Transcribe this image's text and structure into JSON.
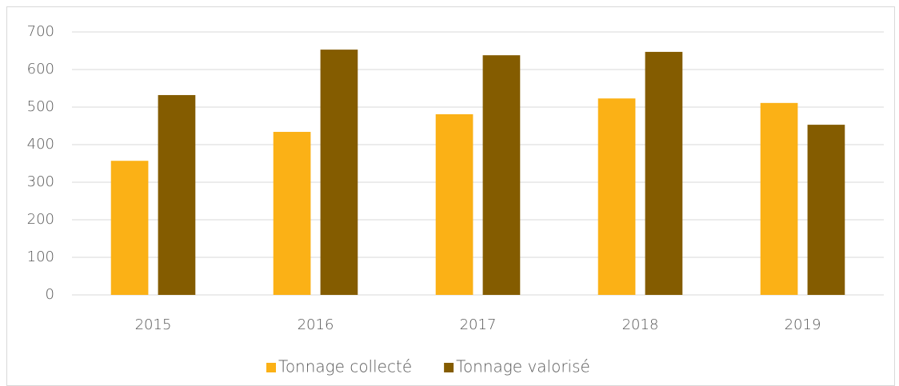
{
  "chart_data": {
    "type": "bar",
    "categories": [
      "2015",
      "2016",
      "2017",
      "2018",
      "2019"
    ],
    "series": [
      {
        "name": "Tonnage collecté",
        "color": "#fbb116",
        "values": [
          357,
          434,
          481,
          523,
          511
        ]
      },
      {
        "name": "Tonnage valorisé",
        "color": "#845c00",
        "values": [
          532,
          653,
          638,
          647,
          453
        ]
      }
    ],
    "ylim": [
      0,
      700
    ],
    "yticks": [
      0,
      100,
      200,
      300,
      400,
      500,
      600,
      700
    ],
    "grid": true,
    "legend": "bottom"
  }
}
